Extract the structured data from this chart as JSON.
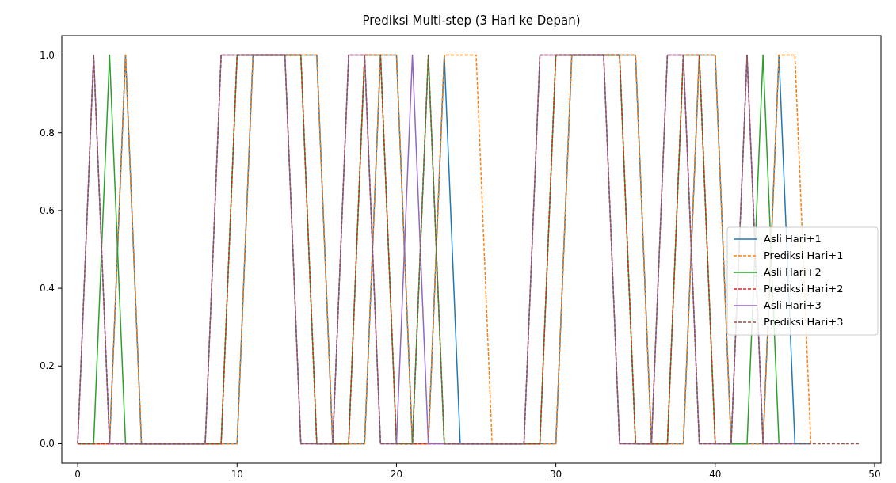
{
  "chart_data": {
    "type": "line",
    "title": "Prediksi Multi-step (3 Hari ke Depan)",
    "x": [
      0,
      1,
      2,
      3,
      4,
      5,
      6,
      7,
      8,
      9,
      10,
      11,
      12,
      13,
      14,
      15,
      16,
      17,
      18,
      19,
      20,
      21,
      22,
      23,
      24,
      25,
      26,
      27,
      28,
      29,
      30,
      31,
      32,
      33,
      34,
      35,
      36,
      37,
      38,
      39,
      40,
      41,
      42,
      43,
      44,
      45,
      46,
      47,
      48,
      49
    ],
    "xlim": [
      -1,
      50.4
    ],
    "xticks": [
      0,
      10,
      20,
      30,
      40,
      50
    ],
    "ylim": [
      -0.05,
      1.05
    ],
    "yticks": [
      {
        "value": 0,
        "label": "0.0"
      },
      {
        "value": 0.2,
        "label": "0.2"
      },
      {
        "value": 0.4,
        "label": "0.4"
      },
      {
        "value": 0.6,
        "label": "0.6"
      },
      {
        "value": 0.8,
        "label": "0.8"
      },
      {
        "value": 1,
        "label": "1.0"
      }
    ],
    "grid": false,
    "legend": "right",
    "marker": "none",
    "series": [
      {
        "name": "Asli Hari+1",
        "color": "#1f77b4",
        "line_style": "solid",
        "values": [
          0,
          0,
          0,
          1,
          0,
          0,
          0,
          0,
          0,
          0,
          0,
          1,
          1,
          1,
          1,
          1,
          0,
          0,
          0,
          1,
          1,
          0,
          0,
          1,
          0,
          0,
          0,
          0,
          0,
          0,
          0,
          1,
          1,
          1,
          1,
          1,
          0,
          0,
          0,
          1,
          1,
          0,
          0,
          0,
          1,
          0,
          0,
          null,
          null,
          null
        ]
      },
      {
        "name": "Prediksi Hari+1",
        "color": "#ff7f0e",
        "line_style": "dashed",
        "values": [
          null,
          0,
          0,
          1,
          0,
          0,
          0,
          0,
          0,
          0,
          0,
          1,
          1,
          1,
          1,
          1,
          0,
          0,
          0,
          1,
          1,
          0,
          0,
          1,
          1,
          1,
          0,
          0,
          0,
          0,
          0,
          1,
          1,
          1,
          1,
          1,
          0,
          0,
          0,
          1,
          1,
          0,
          0,
          0,
          1,
          1,
          0,
          null,
          null,
          null
        ]
      },
      {
        "name": "Asli Hari+2",
        "color": "#2ca02c",
        "line_style": "solid",
        "values": [
          0,
          0,
          1,
          0,
          0,
          0,
          0,
          0,
          0,
          0,
          1,
          1,
          1,
          1,
          1,
          0,
          0,
          0,
          1,
          1,
          0,
          0,
          1,
          0,
          0,
          0,
          0,
          0,
          0,
          0,
          1,
          1,
          1,
          1,
          1,
          0,
          0,
          0,
          1,
          1,
          0,
          0,
          0,
          1,
          0,
          null,
          null,
          null,
          null,
          null
        ]
      },
      {
        "name": "Prediksi Hari+2",
        "color": "#d62728",
        "line_style": "dashed",
        "values": [
          0,
          0,
          0,
          0,
          0,
          0,
          0,
          0,
          0,
          0,
          1,
          1,
          1,
          1,
          1,
          0,
          0,
          0,
          1,
          1,
          0,
          0,
          0,
          0,
          0,
          0,
          0,
          0,
          0,
          0,
          1,
          1,
          1,
          1,
          1,
          0,
          0,
          0,
          1,
          1,
          0,
          null,
          null,
          null,
          null,
          null,
          null,
          null,
          null,
          null
        ]
      },
      {
        "name": "Asli Hari+3",
        "color": "#9467bd",
        "line_style": "solid",
        "values": [
          0,
          1,
          0,
          0,
          0,
          0,
          0,
          0,
          0,
          1,
          1,
          1,
          1,
          1,
          0,
          0,
          0,
          1,
          1,
          0,
          0,
          1,
          0,
          0,
          0,
          0,
          0,
          0,
          0,
          1,
          1,
          1,
          1,
          1,
          0,
          0,
          0,
          1,
          1,
          0,
          0,
          0,
          1,
          0,
          0,
          0,
          null,
          null,
          null,
          null
        ]
      },
      {
        "name": "Prediksi Hari+3",
        "color": "#8c564b",
        "line_style": "dashed",
        "values": [
          0,
          1,
          0,
          0,
          0,
          0,
          0,
          0,
          0,
          1,
          1,
          1,
          1,
          1,
          0,
          0,
          0,
          1,
          1,
          0,
          0,
          0,
          1,
          0,
          0,
          0,
          0,
          0,
          0,
          1,
          1,
          1,
          1,
          1,
          0,
          0,
          0,
          1,
          1,
          0,
          0,
          0,
          1,
          0,
          0,
          0,
          0,
          0,
          0,
          0
        ]
      }
    ]
  }
}
